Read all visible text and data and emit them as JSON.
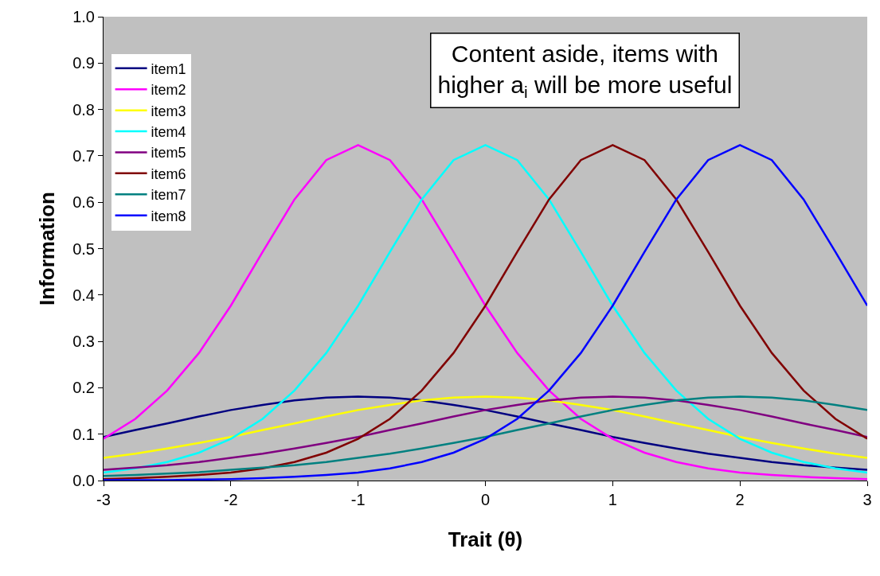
{
  "chart_data": {
    "type": "line",
    "xlabel": "Trait (θ)",
    "ylabel": "Information",
    "x": [
      -3,
      -2.75,
      -2.5,
      -2.25,
      -2,
      -1.75,
      -1.5,
      -1.25,
      -1,
      -0.75,
      -0.5,
      -0.25,
      0,
      0.25,
      0.5,
      0.75,
      1,
      1.25,
      1.5,
      1.75,
      2,
      2.25,
      2.5,
      2.75,
      3
    ],
    "series": [
      {
        "name": "item1",
        "color": "#000080",
        "values": [
          0.094,
          0.109,
          0.123,
          0.138,
          0.152,
          0.163,
          0.173,
          0.179,
          0.181,
          0.179,
          0.173,
          0.163,
          0.152,
          0.138,
          0.123,
          0.109,
          0.094,
          0.081,
          0.069,
          0.058,
          0.049,
          0.04,
          0.033,
          0.028,
          0.023
        ]
      },
      {
        "name": "item2",
        "color": "#ff00ff",
        "values": [
          0.09,
          0.133,
          0.194,
          0.275,
          0.377,
          0.493,
          0.606,
          0.691,
          0.723,
          0.691,
          0.606,
          0.493,
          0.377,
          0.275,
          0.194,
          0.133,
          0.09,
          0.06,
          0.04,
          0.026,
          0.017,
          0.012,
          0.008,
          0.005,
          0.003
        ]
      },
      {
        "name": "item3",
        "color": "#ffff00",
        "values": [
          0.049,
          0.058,
          0.069,
          0.081,
          0.094,
          0.109,
          0.123,
          0.138,
          0.152,
          0.163,
          0.173,
          0.179,
          0.181,
          0.179,
          0.173,
          0.163,
          0.152,
          0.138,
          0.123,
          0.109,
          0.094,
          0.081,
          0.069,
          0.058,
          0.049
        ]
      },
      {
        "name": "item4",
        "color": "#00ffff",
        "values": [
          0.017,
          0.026,
          0.04,
          0.06,
          0.09,
          0.133,
          0.194,
          0.275,
          0.377,
          0.493,
          0.606,
          0.691,
          0.723,
          0.691,
          0.606,
          0.493,
          0.377,
          0.275,
          0.194,
          0.133,
          0.09,
          0.06,
          0.04,
          0.026,
          0.017
        ]
      },
      {
        "name": "item5",
        "color": "#800080",
        "values": [
          0.023,
          0.028,
          0.033,
          0.04,
          0.049,
          0.058,
          0.069,
          0.081,
          0.094,
          0.109,
          0.123,
          0.138,
          0.152,
          0.163,
          0.173,
          0.179,
          0.181,
          0.179,
          0.173,
          0.163,
          0.152,
          0.138,
          0.123,
          0.109,
          0.094
        ]
      },
      {
        "name": "item6",
        "color": "#800000",
        "values": [
          0.003,
          0.005,
          0.008,
          0.012,
          0.017,
          0.026,
          0.04,
          0.06,
          0.09,
          0.133,
          0.194,
          0.275,
          0.377,
          0.493,
          0.606,
          0.691,
          0.723,
          0.691,
          0.606,
          0.493,
          0.377,
          0.275,
          0.194,
          0.133,
          0.09
        ]
      },
      {
        "name": "item7",
        "color": "#008080",
        "values": [
          0.01,
          0.012,
          0.015,
          0.018,
          0.023,
          0.028,
          0.033,
          0.04,
          0.049,
          0.058,
          0.069,
          0.081,
          0.094,
          0.109,
          0.123,
          0.138,
          0.152,
          0.163,
          0.173,
          0.179,
          0.181,
          0.179,
          0.173,
          0.163,
          0.152
        ]
      },
      {
        "name": "item8",
        "color": "#0000ff",
        "values": [
          0.001,
          0.001,
          0.001,
          0.002,
          0.003,
          0.005,
          0.008,
          0.012,
          0.017,
          0.026,
          0.04,
          0.06,
          0.09,
          0.133,
          0.194,
          0.275,
          0.377,
          0.493,
          0.606,
          0.691,
          0.723,
          0.691,
          0.606,
          0.493,
          0.377
        ]
      }
    ],
    "xlim": [
      -3,
      3
    ],
    "xticks": [
      -3,
      -2,
      -1,
      0,
      1,
      2,
      3
    ],
    "ylim": [
      0,
      1
    ],
    "yticks": [
      {
        "value": 0,
        "label": "0.0"
      },
      0.1,
      0.2,
      0.3,
      0.4,
      0.5,
      0.6,
      0.7,
      0.8,
      0.9,
      {
        "value": 1,
        "label": "1.0"
      }
    ],
    "annotations": [
      "Content aside, items with\nhigher a$_{i}$ will be more useful"
    ],
    "legend": "top left",
    "grid": false,
    "marker": "none",
    "line_style": "solid"
  }
}
